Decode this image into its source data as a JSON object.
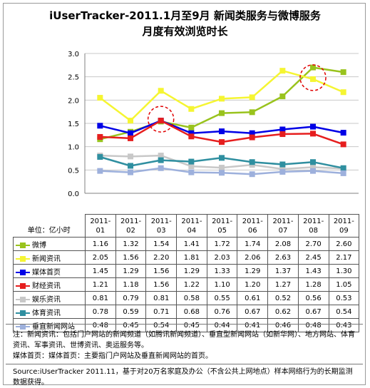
{
  "header": {
    "title_line1": "iUserTracker-2011.1月至9月 新闻类服务与微博服务",
    "title_line2": "月度有效浏览时长"
  },
  "chart_data": {
    "type": "line",
    "title": "iUserTracker-2011.1月至9月 新闻类服务与微博服务 月度有效浏览时长",
    "ylabel": "单位：亿小时",
    "ylim": [
      0,
      3
    ],
    "yticks": [
      "0.0",
      "0.5",
      "1.0",
      "1.5",
      "2.0",
      "2.5",
      "3.0"
    ],
    "categories": [
      [
        "2011-",
        "01"
      ],
      [
        "2011-",
        "02"
      ],
      [
        "2011-",
        "03"
      ],
      [
        "2011-",
        "04"
      ],
      [
        "2011-",
        "05"
      ],
      [
        "2011-",
        "06"
      ],
      [
        "2011-",
        "07"
      ],
      [
        "2011-",
        "08"
      ],
      [
        "2011-",
        "09"
      ]
    ],
    "grid": "horizontal",
    "legend": "data-table",
    "series": [
      {
        "name": "微博",
        "color": "#99c31d",
        "values": [
          1.16,
          1.32,
          1.54,
          1.41,
          1.72,
          1.74,
          2.08,
          2.7,
          2.6
        ]
      },
      {
        "name": "新闻资讯",
        "color": "#f5f532",
        "values": [
          2.05,
          1.56,
          2.2,
          1.81,
          2.03,
          2.06,
          2.63,
          2.45,
          2.17
        ]
      },
      {
        "name": "媒体首页",
        "color": "#0000e6",
        "values": [
          1.45,
          1.29,
          1.56,
          1.29,
          1.33,
          1.29,
          1.37,
          1.43,
          1.3
        ]
      },
      {
        "name": "财经资讯",
        "color": "#e61e1e",
        "values": [
          1.21,
          1.18,
          1.56,
          1.22,
          1.1,
          1.2,
          1.27,
          1.28,
          1.05
        ]
      },
      {
        "name": "娱乐资讯",
        "color": "#c8c8c8",
        "values": [
          0.81,
          0.79,
          0.81,
          0.58,
          0.55,
          0.61,
          0.52,
          0.56,
          0.53
        ]
      },
      {
        "name": "体育资讯",
        "color": "#2f8fa0",
        "values": [
          0.78,
          0.59,
          0.71,
          0.68,
          0.76,
          0.67,
          0.62,
          0.67,
          0.54
        ]
      },
      {
        "name": "垂直新闻网站",
        "color": "#9db0dc",
        "values": [
          0.48,
          0.45,
          0.54,
          0.45,
          0.44,
          0.41,
          0.46,
          0.48,
          0.43
        ]
      }
    ],
    "highlights": [
      {
        "series": "媒体首页",
        "category_index": 2
      },
      {
        "series": "新闻资讯",
        "category_index": 7
      }
    ]
  },
  "notes": {
    "note1": "注：新闻资讯：包括门户网站的新闻频道（如腾讯新闻频道）、垂直型新闻网站（如新华网）、地方网站、体育资讯、军事资讯、世博资讯、奥运服务等。",
    "note1b": "媒体首页：媒体首页：主要指门户网站及垂直新闻网站的首页。",
    "note2": "Source:iUserTracker 2011.11，基于对20万名家庭及办公（不含公共上网地点）样本网络行为的长期监测数据获得。"
  }
}
